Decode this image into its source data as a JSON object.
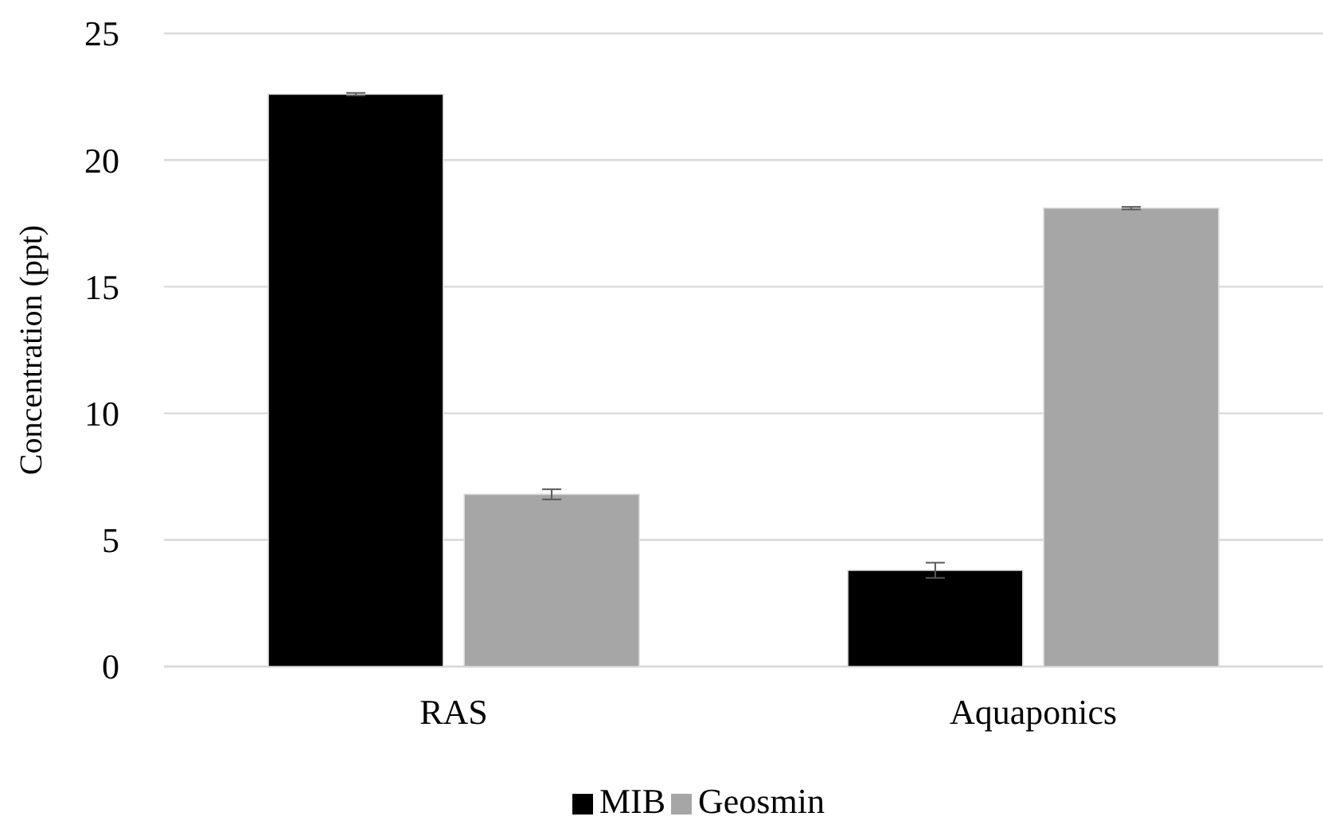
{
  "chart_data": {
    "type": "bar",
    "ylabel": "Concentration (ppt)",
    "categories": [
      "RAS",
      "Aquaponics"
    ],
    "series": [
      {
        "name": "MIB",
        "color": "#000000",
        "values": [
          22.6,
          3.8
        ],
        "errors": [
          0.05,
          0.3
        ]
      },
      {
        "name": "Geosmin",
        "color": "#a6a6a6",
        "values": [
          6.8,
          18.1
        ],
        "errors": [
          0.2,
          0.05
        ]
      }
    ],
    "ylim": [
      0,
      25
    ],
    "yticks": [
      0,
      5,
      10,
      15,
      20,
      25
    ],
    "grid": "y",
    "legend": "bottom"
  }
}
